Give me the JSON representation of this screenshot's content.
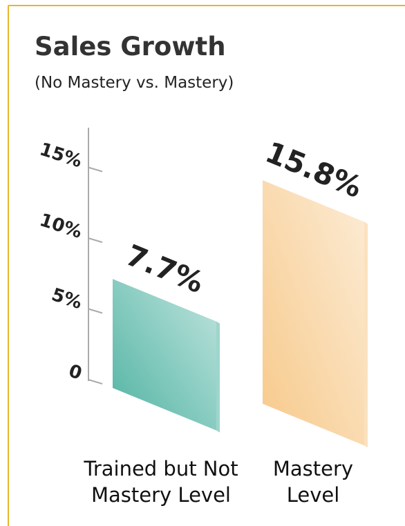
{
  "chart_data": {
    "type": "bar",
    "title": "Sales Growth",
    "subtitle": "(No Mastery vs. Mastery)",
    "categories": [
      "Trained but Not Mastery Level",
      "Mastery Level"
    ],
    "values": [
      7.7,
      15.8
    ],
    "value_labels": [
      "7.7%",
      "15.8%"
    ],
    "colors": [
      "#4fb3a2",
      "#f7c98a"
    ],
    "ylim": [
      0,
      18
    ],
    "yticks": [
      0,
      {
        "value": 5,
        "label": "5%"
      },
      {
        "value": 10,
        "label": "10%"
      },
      {
        "value": 15,
        "label": "15%"
      }
    ]
  }
}
